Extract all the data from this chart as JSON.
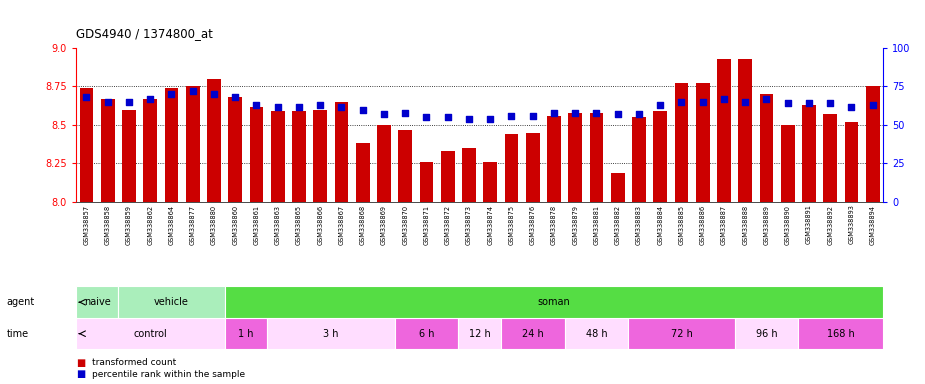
{
  "title": "GDS4940 / 1374800_at",
  "samples": [
    "GSM338857",
    "GSM338858",
    "GSM338859",
    "GSM338862",
    "GSM338864",
    "GSM338877",
    "GSM338880",
    "GSM338860",
    "GSM338861",
    "GSM338863",
    "GSM338865",
    "GSM338866",
    "GSM338867",
    "GSM338868",
    "GSM338869",
    "GSM338870",
    "GSM338871",
    "GSM338872",
    "GSM338873",
    "GSM338874",
    "GSM338875",
    "GSM338876",
    "GSM338878",
    "GSM338879",
    "GSM338881",
    "GSM338882",
    "GSM338883",
    "GSM338884",
    "GSM338885",
    "GSM338886",
    "GSM338887",
    "GSM338888",
    "GSM338889",
    "GSM338890",
    "GSM338891",
    "GSM338892",
    "GSM338893",
    "GSM338894"
  ],
  "bar_values": [
    8.74,
    8.67,
    8.6,
    8.67,
    8.74,
    8.75,
    8.8,
    8.68,
    8.62,
    8.59,
    8.59,
    8.6,
    8.65,
    8.38,
    8.5,
    8.47,
    8.26,
    8.33,
    8.35,
    8.26,
    8.44,
    8.45,
    8.56,
    8.58,
    8.58,
    8.19,
    8.55,
    8.59,
    8.77,
    8.77,
    8.93,
    8.93,
    8.7,
    8.5,
    8.63,
    8.57,
    8.52,
    8.75
  ],
  "percentile_values": [
    68,
    65,
    65,
    67,
    70,
    72,
    70,
    68,
    63,
    62,
    62,
    63,
    62,
    60,
    57,
    58,
    55,
    55,
    54,
    54,
    56,
    56,
    58,
    58,
    58,
    57,
    57,
    63,
    65,
    65,
    67,
    65,
    67,
    64,
    64,
    64,
    62,
    63
  ],
  "bar_color": "#cc0000",
  "dot_color": "#0000cc",
  "ylim_left": [
    8.0,
    9.0
  ],
  "ylim_right": [
    0,
    100
  ],
  "yticks_left": [
    8.0,
    8.25,
    8.5,
    8.75,
    9.0
  ],
  "yticks_right": [
    0,
    25,
    50,
    75,
    100
  ],
  "agent_spans": [
    {
      "label": "naive",
      "start": 0,
      "end": 2,
      "color": "#aaeebb"
    },
    {
      "label": "vehicle",
      "start": 2,
      "end": 7,
      "color": "#aaeebb"
    },
    {
      "label": "soman",
      "start": 7,
      "end": 38,
      "color": "#55dd44"
    }
  ],
  "time_spans": [
    {
      "label": "control",
      "start": 0,
      "end": 7,
      "color": "#ffddff"
    },
    {
      "label": "1 h",
      "start": 7,
      "end": 9,
      "color": "#ee66dd"
    },
    {
      "label": "3 h",
      "start": 9,
      "end": 15,
      "color": "#ffddff"
    },
    {
      "label": "6 h",
      "start": 15,
      "end": 18,
      "color": "#ee66dd"
    },
    {
      "label": "12 h",
      "start": 18,
      "end": 20,
      "color": "#ffddff"
    },
    {
      "label": "24 h",
      "start": 20,
      "end": 23,
      "color": "#ee66dd"
    },
    {
      "label": "48 h",
      "start": 23,
      "end": 26,
      "color": "#ffddff"
    },
    {
      "label": "72 h",
      "start": 26,
      "end": 31,
      "color": "#ee66dd"
    },
    {
      "label": "96 h",
      "start": 31,
      "end": 34,
      "color": "#ffddff"
    },
    {
      "label": "168 h",
      "start": 34,
      "end": 38,
      "color": "#ee66dd"
    }
  ],
  "xtick_bg_color": "#dddddd",
  "background_color": "#ffffff",
  "fig_width": 9.25,
  "fig_height": 3.84,
  "dpi": 100
}
